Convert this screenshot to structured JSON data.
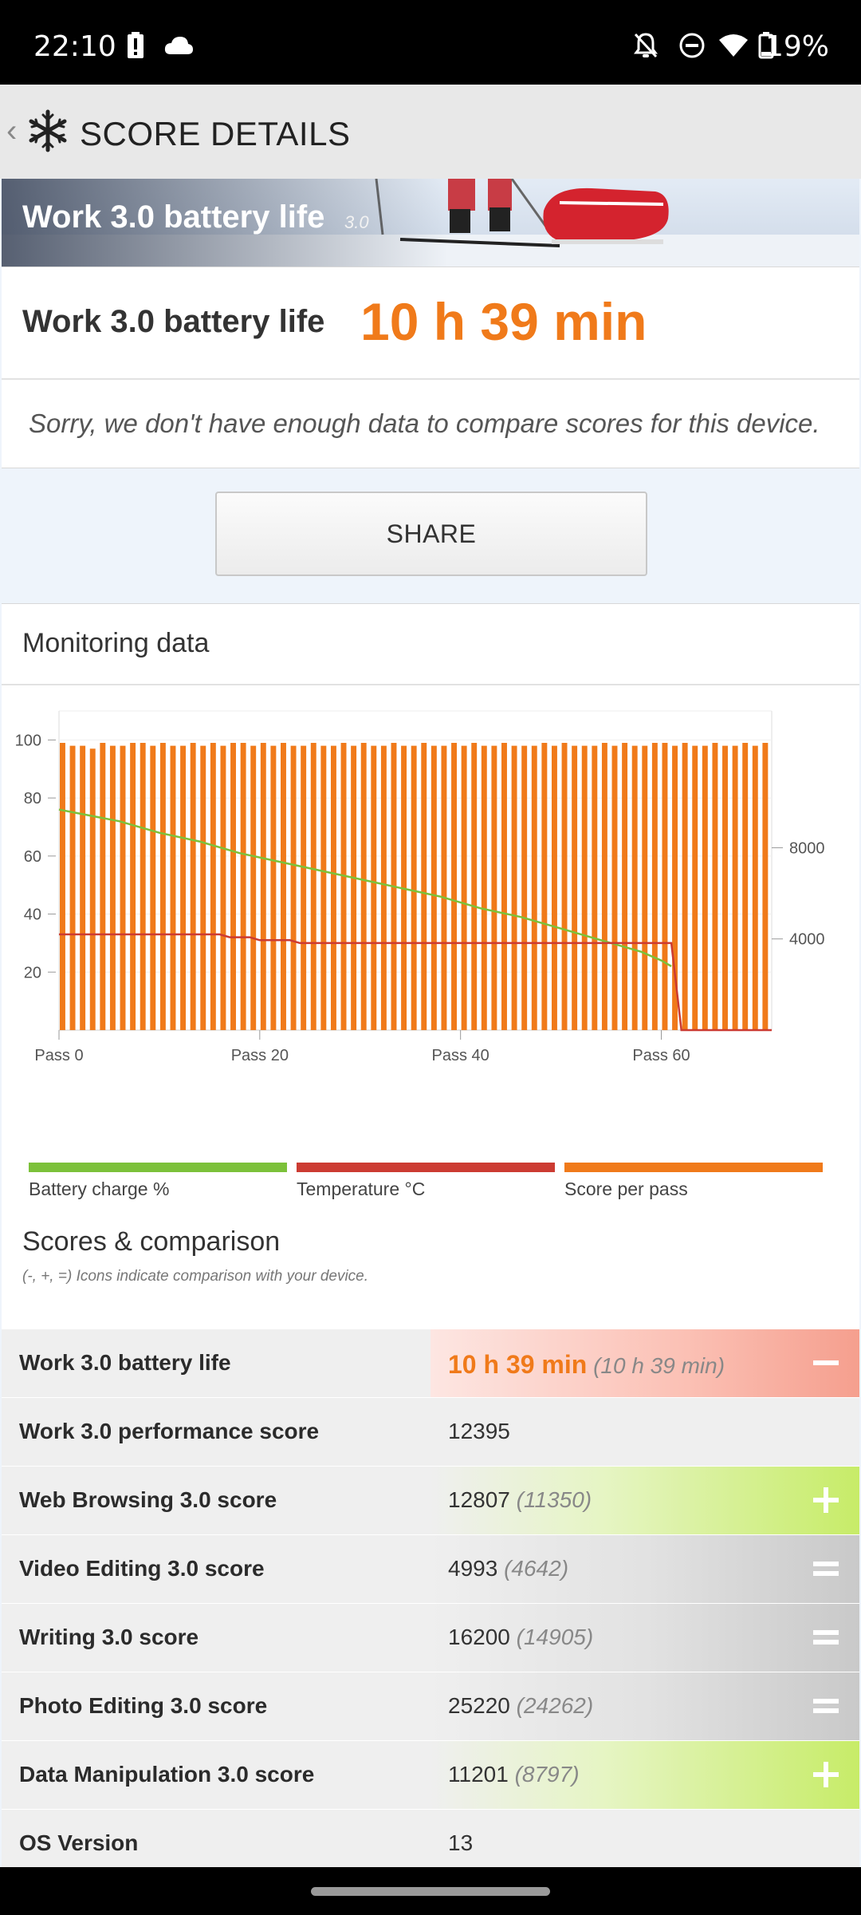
{
  "status": {
    "time": "22:10",
    "battery_pct": "19%"
  },
  "appbar": {
    "back_glyph": "‹",
    "title": "SCORE DETAILS"
  },
  "hero": {
    "name": "Work 3.0 battery life",
    "version": "3.0"
  },
  "score": {
    "label": "Work 3.0 battery life",
    "value": "10 h 39 min"
  },
  "nodata_text": "Sorry, we don't have enough data to compare scores for this device.",
  "share_label": "SHARE",
  "monitoring": {
    "title": "Monitoring data",
    "legend": [
      "Battery charge %",
      "Temperature °C",
      "Score per pass"
    ],
    "legend_colors": [
      "#7cc13a",
      "#cc3b32",
      "#f07a1a"
    ]
  },
  "chart_data": {
    "type": "line",
    "title": "",
    "x_tick_labels": [
      "Pass 0",
      "Pass 20",
      "Pass 40",
      "Pass 60"
    ],
    "x_ticks": [
      0,
      20,
      40,
      60
    ],
    "y_left_ticks": [
      100,
      80,
      60,
      40,
      20
    ],
    "y_left_range": [
      0,
      110
    ],
    "y_right_ticks": [
      8000,
      4000
    ],
    "y_right_range": [
      0,
      14000
    ],
    "series": [
      {
        "name": "Battery charge %",
        "axis": "left",
        "color": "#7cc13a",
        "points": [
          [
            0,
            76
          ],
          [
            6,
            72
          ],
          [
            10,
            68
          ],
          [
            14,
            65
          ],
          [
            18,
            61
          ],
          [
            22,
            58
          ],
          [
            26,
            55
          ],
          [
            30,
            52
          ],
          [
            34,
            49
          ],
          [
            38,
            46
          ],
          [
            42,
            42
          ],
          [
            46,
            39
          ],
          [
            50,
            35
          ],
          [
            54,
            31
          ],
          [
            58,
            27
          ],
          [
            60,
            24
          ],
          [
            61,
            22
          ]
        ]
      },
      {
        "name": "Temperature °C",
        "axis": "left",
        "color": "#cc3b32",
        "points": [
          [
            0,
            33
          ],
          [
            16,
            33
          ],
          [
            17,
            32
          ],
          [
            19,
            32
          ],
          [
            20,
            31
          ],
          [
            23,
            31
          ],
          [
            24,
            30
          ],
          [
            61,
            30
          ],
          [
            62,
            0
          ],
          [
            71,
            0
          ]
        ]
      },
      {
        "name": "Score per pass",
        "axis": "left",
        "color": "#f07a1a",
        "type": "bar",
        "values": [
          99,
          98,
          98,
          97,
          99,
          98,
          98,
          99,
          99,
          98,
          99,
          98,
          98,
          99,
          98,
          99,
          98,
          99,
          99,
          98,
          99,
          98,
          99,
          98,
          98,
          99,
          98,
          98,
          99,
          98,
          99,
          98,
          98,
          99,
          98,
          98,
          99,
          98,
          98,
          99,
          98,
          99,
          98,
          98,
          99,
          98,
          98,
          98,
          99,
          98,
          99,
          98,
          98,
          98,
          99,
          98,
          99,
          98,
          98,
          99,
          99,
          98,
          99,
          98,
          98,
          99,
          98,
          98,
          99,
          98,
          99
        ]
      }
    ]
  },
  "scores_section": {
    "title": "Scores & comparison",
    "note": "(-, +, =) Icons indicate comparison with your device."
  },
  "rows": [
    {
      "label": "Work 3.0 battery life",
      "value": "10 h 39 min",
      "compare": "(10 h 39 min)",
      "sign": "minus"
    },
    {
      "label": "Work 3.0 performance score",
      "value": "12395",
      "compare": "",
      "sign": "none"
    },
    {
      "label": "Web Browsing 3.0 score",
      "value": "12807",
      "compare": "(11350)",
      "sign": "plus"
    },
    {
      "label": "Video Editing 3.0 score",
      "value": "4993",
      "compare": "(4642)",
      "sign": "equal"
    },
    {
      "label": "Writing 3.0 score",
      "value": "16200",
      "compare": "(14905)",
      "sign": "equal"
    },
    {
      "label": "Photo Editing 3.0 score",
      "value": "25220",
      "compare": "(24262)",
      "sign": "equal"
    },
    {
      "label": "Data Manipulation 3.0 score",
      "value": "11201",
      "compare": "(8797)",
      "sign": "plus"
    },
    {
      "label": "OS Version",
      "value": "13",
      "compare": "",
      "sign": "none"
    }
  ]
}
